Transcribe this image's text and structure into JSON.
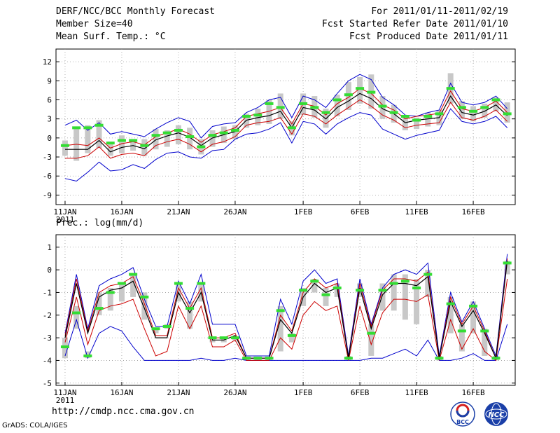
{
  "header": {
    "title": "DERF/NCC/BCC Monthly Forecast",
    "member_size": "Member Size=40",
    "variable": "Mean Surf. Temp.: °C",
    "period": "For 2011/01/11-2011/02/19",
    "refer_date": "Fcst Started Refer Date 2011/01/10",
    "produced_date": "Fcst Produced Date 2011/01/11"
  },
  "footer": {
    "url": "http://cmdp.ncc.cma.gov.cn",
    "credit": "GrADS: COLA/IGES",
    "logo_left_text": "BCC",
    "logo_right_text": "NCC"
  },
  "colors": {
    "ensemble_mean": "#000000",
    "inner_spread": "#cc0000",
    "outer_envelope": "#0000cc",
    "members_box": "#c8c8c8",
    "markers": "#33dd33"
  },
  "chart_data": [
    {
      "type": "line",
      "title": "",
      "ylabel": "Mean Surf. Temp.: °C",
      "ylim": [
        -10.5,
        14
      ],
      "yticks": [
        -9,
        -6,
        -3,
        0,
        3,
        6,
        9,
        12
      ],
      "x": [
        "01-11",
        "01-12",
        "01-13",
        "01-14",
        "01-15",
        "01-16",
        "01-17",
        "01-18",
        "01-19",
        "01-20",
        "01-21",
        "01-22",
        "01-23",
        "01-24",
        "01-25",
        "01-26",
        "01-27",
        "01-28",
        "01-29",
        "01-30",
        "01-31",
        "02-01",
        "02-02",
        "02-03",
        "02-04",
        "02-05",
        "02-06",
        "02-07",
        "02-08",
        "02-09",
        "02-10",
        "02-11",
        "02-12",
        "02-13",
        "02-14",
        "02-15",
        "02-16",
        "02-17",
        "02-18",
        "02-19"
      ],
      "xtick_labels": [
        {
          "label": "11JAN",
          "index": 0,
          "sub": "2011"
        },
        {
          "label": "16JAN",
          "index": 5
        },
        {
          "label": "21JAN",
          "index": 10
        },
        {
          "label": "26JAN",
          "index": 15
        },
        {
          "label": "1FEB",
          "index": 21
        },
        {
          "label": "6FEB",
          "index": 26
        },
        {
          "label": "11FEB",
          "index": 31
        },
        {
          "label": "16FEB",
          "index": 36
        }
      ],
      "series": [
        {
          "name": "ensemble_mean",
          "role": "mean",
          "values": [
            -1.8,
            -1.8,
            -1.8,
            -0.4,
            -2.2,
            -1.5,
            -1.2,
            -1.7,
            -0.3,
            0.3,
            0.8,
            0.1,
            -1.2,
            0.0,
            0.5,
            1.0,
            2.8,
            3.2,
            3.5,
            4.2,
            1.6,
            4.8,
            4.4,
            3.0,
            4.8,
            5.8,
            7.0,
            6.2,
            4.6,
            3.8,
            2.4,
            2.8,
            3.0,
            3.2,
            6.6,
            4.0,
            3.6,
            4.2,
            5.2,
            3.5
          ]
        },
        {
          "name": "upper_spread",
          "role": "inner",
          "values": [
            -1.2,
            -1.0,
            -1.2,
            0.0,
            -1.6,
            -0.9,
            -0.6,
            -1.1,
            0.2,
            0.8,
            1.4,
            0.6,
            -0.7,
            0.5,
            1.0,
            1.6,
            3.4,
            3.8,
            4.2,
            4.8,
            2.2,
            5.4,
            5.0,
            3.6,
            5.4,
            6.4,
            7.8,
            7.0,
            5.2,
            4.4,
            3.0,
            3.4,
            3.6,
            3.9,
            7.4,
            4.6,
            4.2,
            4.8,
            5.8,
            4.0
          ]
        },
        {
          "name": "lower_spread",
          "role": "inner",
          "values": [
            -3.2,
            -3.2,
            -2.8,
            -1.4,
            -3.2,
            -2.6,
            -2.4,
            -2.8,
            -1.2,
            -0.6,
            -0.2,
            -1.0,
            -2.2,
            -1.0,
            -0.6,
            0.2,
            2.0,
            2.4,
            2.6,
            3.2,
            0.6,
            3.8,
            3.4,
            2.2,
            3.6,
            4.8,
            6.0,
            5.0,
            3.6,
            2.8,
            1.6,
            2.0,
            2.2,
            2.4,
            5.6,
            3.2,
            2.8,
            3.4,
            4.4,
            2.6
          ]
        },
        {
          "name": "upper_envelope",
          "role": "outer",
          "values": [
            2.0,
            2.8,
            1.2,
            2.4,
            0.6,
            1.0,
            0.6,
            0.2,
            1.4,
            2.4,
            3.2,
            2.6,
            0.0,
            1.8,
            2.2,
            2.4,
            4.0,
            4.8,
            6.0,
            6.4,
            3.2,
            6.6,
            6.0,
            4.8,
            7.0,
            9.0,
            10.0,
            9.2,
            6.4,
            5.2,
            3.6,
            3.4,
            4.0,
            4.4,
            8.6,
            5.6,
            5.2,
            5.6,
            6.6,
            4.6
          ]
        },
        {
          "name": "lower_envelope",
          "role": "outer",
          "values": [
            -6.4,
            -6.8,
            -5.4,
            -3.8,
            -5.2,
            -5.0,
            -4.2,
            -4.8,
            -3.4,
            -2.4,
            -2.2,
            -3.0,
            -3.2,
            -2.0,
            -1.8,
            -0.2,
            0.6,
            0.8,
            1.4,
            2.4,
            -0.8,
            2.6,
            2.2,
            0.6,
            2.2,
            3.2,
            4.0,
            3.6,
            1.4,
            0.6,
            -0.2,
            0.4,
            0.8,
            1.2,
            4.6,
            2.6,
            2.2,
            2.6,
            3.4,
            1.6
          ]
        },
        {
          "name": "members_hi",
          "role": "box_hi",
          "values": [
            -0.4,
            1.8,
            2.0,
            2.8,
            -0.6,
            0.4,
            -0.2,
            -0.2,
            1.4,
            1.2,
            2.0,
            1.6,
            -0.2,
            1.2,
            1.8,
            2.0,
            3.8,
            4.6,
            6.0,
            7.0,
            2.6,
            7.0,
            6.6,
            4.6,
            6.8,
            8.8,
            9.6,
            10.0,
            6.6,
            5.2,
            3.6,
            3.2,
            4.0,
            4.4,
            10.2,
            5.8,
            5.0,
            5.4,
            6.4,
            5.6
          ]
        },
        {
          "name": "members_lo",
          "role": "box_lo",
          "values": [
            -2.8,
            -3.6,
            -2.4,
            -1.6,
            -2.8,
            -2.4,
            -2.0,
            -2.8,
            -1.8,
            -1.4,
            -1.0,
            -1.8,
            -2.6,
            -1.4,
            -0.8,
            -0.2,
            1.6,
            2.0,
            2.2,
            3.0,
            0.4,
            3.6,
            3.2,
            1.6,
            3.4,
            4.4,
            5.4,
            4.6,
            3.0,
            2.4,
            1.2,
            1.4,
            1.8,
            2.0,
            5.4,
            3.0,
            2.6,
            3.2,
            4.2,
            2.4
          ]
        },
        {
          "name": "green_markers",
          "role": "marker",
          "values": [
            -1.2,
            1.6,
            1.6,
            2.0,
            -0.8,
            -0.4,
            -0.4,
            -1.2,
            0.4,
            0.8,
            1.2,
            0.2,
            -1.4,
            0.4,
            0.8,
            1.2,
            3.4,
            3.6,
            5.4,
            4.8,
            1.6,
            5.4,
            4.8,
            4.0,
            6.0,
            6.8,
            7.8,
            7.2,
            5.0,
            4.0,
            3.4,
            2.8,
            3.4,
            3.8,
            7.8,
            4.8,
            4.2,
            4.8,
            6.0,
            3.8
          ]
        }
      ]
    },
    {
      "type": "line",
      "title": "",
      "ylabel": "Prec.: log(mm/d)",
      "ylim": [
        -5.1,
        1.55
      ],
      "yticks": [
        -5,
        -4,
        -3,
        -2,
        -1,
        0,
        1
      ],
      "x": [
        "01-11",
        "01-12",
        "01-13",
        "01-14",
        "01-15",
        "01-16",
        "01-17",
        "01-18",
        "01-19",
        "01-20",
        "01-21",
        "01-22",
        "01-23",
        "01-24",
        "01-25",
        "01-26",
        "01-27",
        "01-28",
        "01-29",
        "01-30",
        "01-31",
        "02-01",
        "02-02",
        "02-03",
        "02-04",
        "02-05",
        "02-06",
        "02-07",
        "02-08",
        "02-09",
        "02-10",
        "02-11",
        "02-12",
        "02-13",
        "02-14",
        "02-15",
        "02-16",
        "02-17",
        "02-18",
        "02-19"
      ],
      "xtick_labels": [
        {
          "label": "11JAN",
          "index": 0,
          "sub": "2011"
        },
        {
          "label": "16JAN",
          "index": 5
        },
        {
          "label": "21JAN",
          "index": 10
        },
        {
          "label": "26JAN",
          "index": 15
        },
        {
          "label": "1FEB",
          "index": 21
        },
        {
          "label": "6FEB",
          "index": 26
        },
        {
          "label": "11FEB",
          "index": 31
        },
        {
          "label": "16FEB",
          "index": 36
        }
      ],
      "series": [
        {
          "name": "ensemble_mean",
          "role": "mean",
          "values": [
            -3.0,
            -0.6,
            -2.8,
            -1.2,
            -0.9,
            -0.8,
            -0.5,
            -1.7,
            -3.0,
            -3.0,
            -1.0,
            -1.9,
            -1.0,
            -3.1,
            -3.1,
            -2.9,
            -3.9,
            -3.9,
            -3.9,
            -2.2,
            -2.8,
            -1.2,
            -0.6,
            -1.0,
            -0.8,
            -3.9,
            -0.8,
            -2.6,
            -1.1,
            -0.6,
            -0.6,
            -0.7,
            -0.3,
            -3.9,
            -1.4,
            -2.5,
            -1.8,
            -2.8,
            -3.9,
            0.4
          ]
        },
        {
          "name": "upper_spread",
          "role": "inner",
          "values": [
            -2.9,
            -0.4,
            -2.7,
            -1.0,
            -0.7,
            -0.6,
            -0.3,
            -1.5,
            -2.9,
            -2.9,
            -0.8,
            -1.7,
            -0.8,
            -3.0,
            -3.0,
            -2.8,
            -3.9,
            -3.9,
            -3.9,
            -2.0,
            -2.7,
            -1.0,
            -0.4,
            -0.8,
            -0.6,
            -3.9,
            -0.6,
            -2.5,
            -0.9,
            -0.4,
            -0.4,
            -0.5,
            -0.1,
            -3.9,
            -1.2,
            -2.4,
            -1.6,
            -2.7,
            -3.9,
            0.5
          ]
        },
        {
          "name": "lower_spread",
          "role": "inner",
          "values": [
            -3.2,
            -1.2,
            -3.3,
            -1.8,
            -1.6,
            -1.5,
            -1.3,
            -2.6,
            -3.8,
            -3.6,
            -1.6,
            -2.6,
            -1.6,
            -3.4,
            -3.4,
            -3.1,
            -4.0,
            -4.0,
            -4.0,
            -3.0,
            -3.5,
            -2.0,
            -1.4,
            -1.8,
            -1.6,
            -4.0,
            -1.6,
            -3.3,
            -1.9,
            -1.3,
            -1.3,
            -1.4,
            -1.1,
            -4.0,
            -2.2,
            -3.5,
            -2.6,
            -3.6,
            -4.0,
            -0.4
          ]
        },
        {
          "name": "upper_envelope",
          "role": "outer",
          "values": [
            -2.8,
            -0.2,
            -2.6,
            -0.7,
            -0.4,
            -0.2,
            0.1,
            -1.3,
            -2.5,
            -2.5,
            -0.5,
            -1.5,
            -0.2,
            -2.4,
            -2.4,
            -2.4,
            -3.8,
            -3.8,
            -3.8,
            -1.3,
            -2.4,
            -0.5,
            0.0,
            -0.6,
            -0.4,
            -3.8,
            -0.4,
            -2.4,
            -0.8,
            -0.2,
            0.0,
            -0.2,
            0.3,
            -3.8,
            -1.0,
            -2.3,
            -1.4,
            -2.6,
            -3.8,
            0.7
          ]
        },
        {
          "name": "lower_envelope",
          "role": "outer",
          "values": [
            -3.8,
            -2.2,
            -3.9,
            -2.8,
            -2.5,
            -2.7,
            -3.4,
            -4.0,
            -4.0,
            -4.0,
            -4.0,
            -4.0,
            -3.9,
            -4.0,
            -4.0,
            -3.9,
            -4.0,
            -4.0,
            -4.0,
            -4.0,
            -4.0,
            -4.0,
            -4.0,
            -4.0,
            -4.0,
            -4.0,
            -4.0,
            -3.9,
            -3.9,
            -3.7,
            -3.5,
            -3.8,
            -3.1,
            -4.0,
            -4.0,
            -3.9,
            -3.7,
            -4.0,
            -4.0,
            -2.4
          ]
        },
        {
          "name": "members_hi",
          "role": "box_hi",
          "values": [
            -3.0,
            -1.6,
            -3.6,
            -1.0,
            -0.8,
            -0.6,
            -0.2,
            -1.0,
            -2.6,
            -2.4,
            -0.6,
            -1.4,
            -0.6,
            -3.0,
            -3.0,
            -3.0,
            -3.9,
            -3.9,
            -3.9,
            -1.6,
            -2.8,
            -0.8,
            -0.4,
            -0.8,
            -0.6,
            -3.8,
            -0.6,
            -2.4,
            -0.6,
            -0.2,
            -0.2,
            -0.4,
            0.0,
            -3.8,
            -1.2,
            -2.4,
            -1.4,
            -2.6,
            -3.8,
            0.4
          ]
        },
        {
          "name": "members_lo",
          "role": "box_lo",
          "values": [
            -3.9,
            -2.6,
            -3.9,
            -2.0,
            -1.8,
            -1.4,
            -1.2,
            -2.2,
            -2.8,
            -2.6,
            -1.4,
            -2.6,
            -1.4,
            -3.2,
            -3.2,
            -3.1,
            -4.0,
            -4.0,
            -4.0,
            -3.6,
            -3.2,
            -1.6,
            -1.0,
            -1.6,
            -1.2,
            -4.0,
            -1.2,
            -3.8,
            -1.8,
            -1.8,
            -2.2,
            -2.4,
            -1.2,
            -4.0,
            -2.8,
            -3.6,
            -2.8,
            -3.8,
            -4.0,
            -0.2
          ]
        },
        {
          "name": "green_markers",
          "role": "marker",
          "values": [
            -3.4,
            -1.9,
            -3.8,
            -1.7,
            -1.0,
            -0.6,
            -0.2,
            -1.2,
            -2.6,
            -2.5,
            -0.6,
            -1.7,
            -0.6,
            -3.0,
            -3.0,
            -3.0,
            -3.9,
            -3.9,
            -3.9,
            -1.8,
            -2.9,
            -0.9,
            -0.5,
            -1.1,
            -0.8,
            -3.9,
            -0.9,
            -2.8,
            -0.9,
            -0.6,
            -0.5,
            -0.8,
            -0.2,
            -3.9,
            -1.5,
            -2.7,
            -1.6,
            -2.7,
            -3.9,
            0.3
          ]
        }
      ]
    }
  ]
}
